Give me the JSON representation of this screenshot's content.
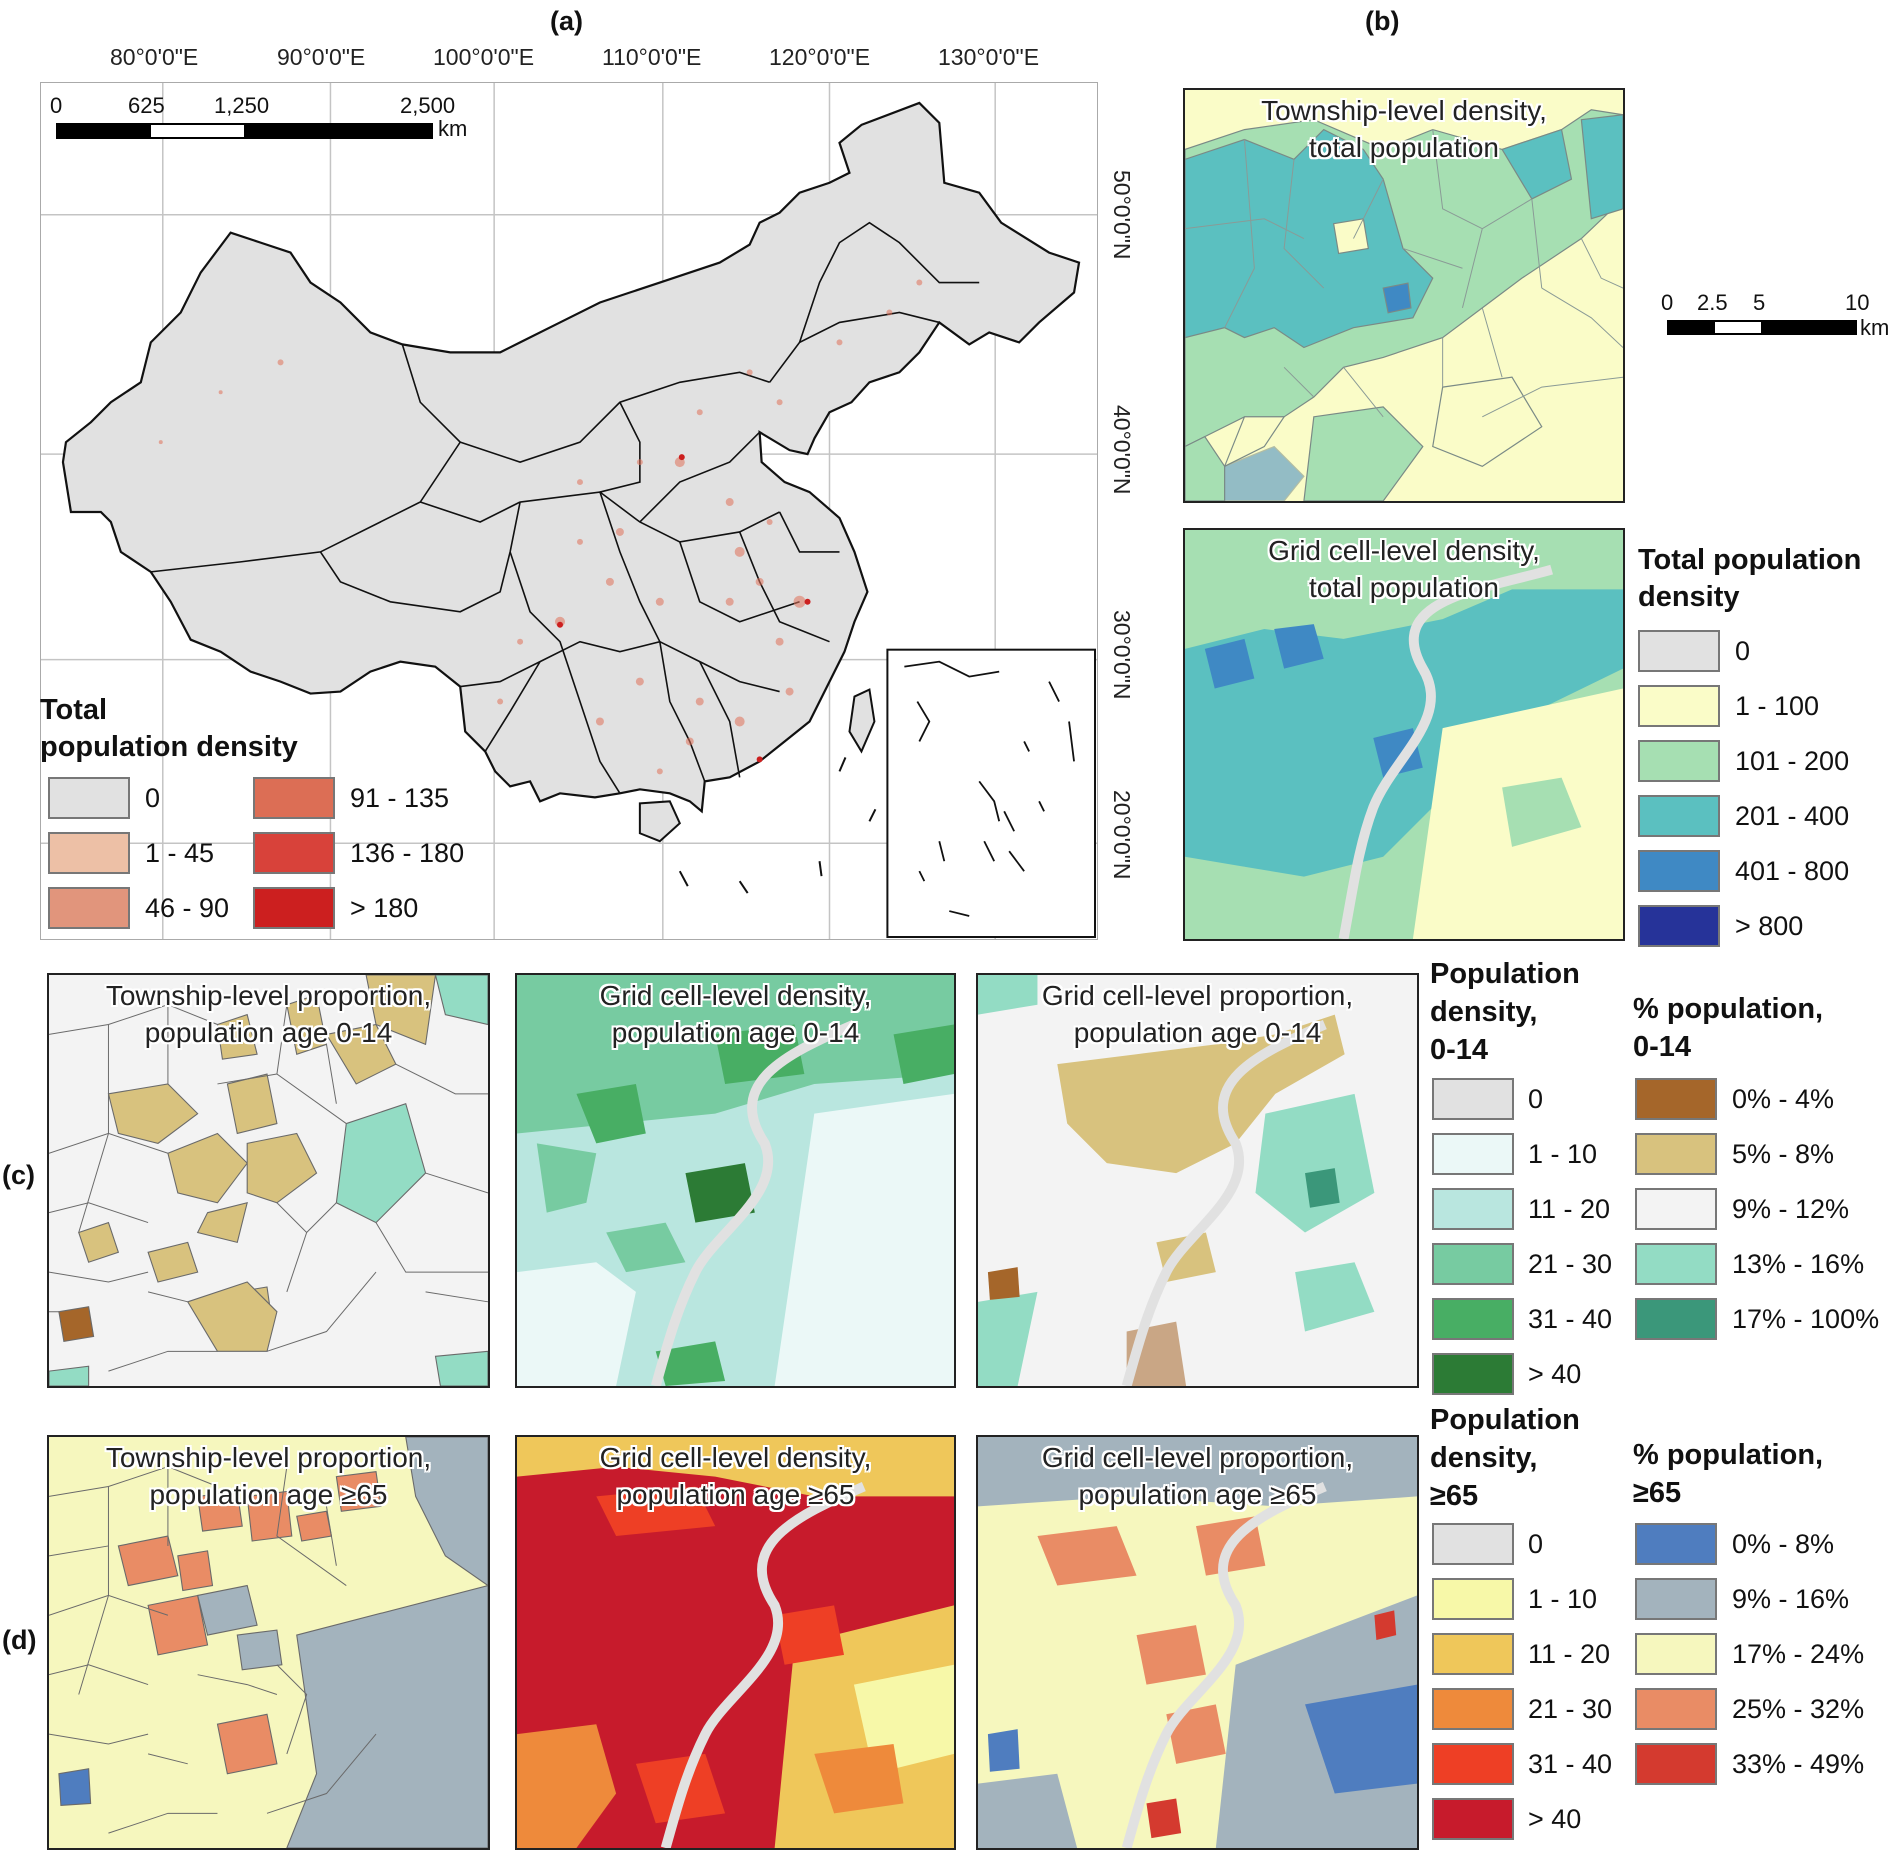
{
  "panel_labels": {
    "a": "(a)",
    "b": "(b)",
    "c": "(c)",
    "d": "(d)"
  },
  "map_a": {
    "lon_ticks": [
      "80°0'0\"E",
      "90°0'0\"E",
      "100°0'0\"E",
      "110°0'0\"E",
      "120°0'0\"E",
      "130°0'0\"E"
    ],
    "lat_ticks": [
      "50°0'0\"N",
      "40°0'0\"N",
      "30°0'0\"N",
      "20°0'0\"N"
    ],
    "scalebar": {
      "labels": [
        "0",
        "625",
        "1,250",
        "2,500"
      ],
      "unit": "km"
    },
    "legend": {
      "title_line1": "Total",
      "title_line2": "population density",
      "items": [
        {
          "label": "0",
          "color": "#e1e1e1"
        },
        {
          "label": "1 - 45",
          "color": "#edc0a6"
        },
        {
          "label": "46 - 90",
          "color": "#e1957c"
        },
        {
          "label": "91 - 135",
          "color": "#dc6e55"
        },
        {
          "label": "136 - 180",
          "color": "#d8423a"
        },
        {
          "label": "> 180",
          "color": "#cc1f1f"
        }
      ]
    }
  },
  "panel_b": {
    "top_title_1": "Township-level density,",
    "top_title_2": "total population",
    "bottom_title_1": "Grid cell-level density,",
    "bottom_title_2": "total population",
    "scalebar": {
      "labels": [
        "0",
        "2.5",
        "5",
        "10"
      ],
      "unit": "km"
    },
    "legend": {
      "title_line1": "Total population",
      "title_line2": "density",
      "items": [
        {
          "label": "0",
          "color": "#e1e1e1"
        },
        {
          "label": "1 - 100",
          "color": "#fafcc8"
        },
        {
          "label": "101 - 200",
          "color": "#a6dfb2"
        },
        {
          "label": "201 - 400",
          "color": "#5bc0c0"
        },
        {
          "label": "401 - 800",
          "color": "#3f89c4"
        },
        {
          "label": "> 800",
          "color": "#263399"
        }
      ]
    }
  },
  "row_c": {
    "title1_1": "Township-level proportion,",
    "title1_2": "population age 0-14",
    "title2_1": "Grid cell-level density,",
    "title2_2": "population age 0-14",
    "title3_1": "Grid cell-level proportion,",
    "title3_2": "population age 0-14",
    "density_legend": {
      "title_line1": "Population",
      "title_line2": "density,",
      "title_line3": "0-14",
      "items": [
        {
          "label": "0",
          "color": "#e1e1e1"
        },
        {
          "label": "1 - 10",
          "color": "#ebf8f7"
        },
        {
          "label": "11 - 20",
          "color": "#b9e6df"
        },
        {
          "label": "21 - 30",
          "color": "#77cba1"
        },
        {
          "label": "31 - 40",
          "color": "#48ae64"
        },
        {
          "label": "> 40",
          "color": "#2c7b35"
        }
      ]
    },
    "pct_legend": {
      "title_line1": "% population,",
      "title_line2": "0-14",
      "items": [
        {
          "label": "0% - 4%",
          "color": "#a5662a"
        },
        {
          "label": "5% - 8%",
          "color": "#d8c27e"
        },
        {
          "label": "9% - 12%",
          "color": "#f3f3f3"
        },
        {
          "label": "13% - 16%",
          "color": "#93dcc4"
        },
        {
          "label": "17% - 100%",
          "color": "#3b977a"
        }
      ]
    }
  },
  "row_d": {
    "title1_1": "Township-level proportion,",
    "title1_2": "population age ≥65",
    "title2_1": "Grid cell-level density,",
    "title2_2": "population age ≥65",
    "title3_1": "Grid cell-level proportion,",
    "title3_2": "population age ≥65",
    "density_legend": {
      "title_line1": "Population",
      "title_line2": "density,",
      "title_line3": "≥65",
      "items": [
        {
          "label": "0",
          "color": "#e1e1e1"
        },
        {
          "label": "1 - 10",
          "color": "#f7f8a8"
        },
        {
          "label": "11 - 20",
          "color": "#efc75a"
        },
        {
          "label": "21 - 30",
          "color": "#ee8a3b"
        },
        {
          "label": "31 - 40",
          "color": "#ee3f25"
        },
        {
          "label": "> 40",
          "color": "#c71b2c"
        }
      ]
    },
    "pct_legend": {
      "title_line1": "% population,",
      "title_line2": "≥65",
      "items": [
        {
          "label": "0% - 8%",
          "color": "#4f7dbf"
        },
        {
          "label": "9% - 16%",
          "color": "#a3b3bd"
        },
        {
          "label": "17% - 24%",
          "color": "#f6f7be"
        },
        {
          "label": "25% - 32%",
          "color": "#e98c65"
        },
        {
          "label": "33% - 49%",
          "color": "#d43a2f"
        }
      ]
    }
  }
}
